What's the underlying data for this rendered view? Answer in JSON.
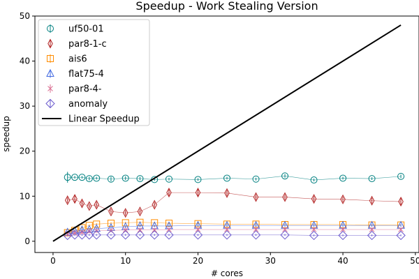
{
  "chart_data": {
    "type": "line",
    "title": "Speedup - Work Stealing Version",
    "xlabel": "# cores",
    "ylabel": "speedup",
    "xlim": [
      -2.5,
      50.5
    ],
    "ylim": [
      -2.5,
      50
    ],
    "xticks": [
      0,
      10,
      20,
      30,
      40,
      50
    ],
    "yticks": [
      0,
      10,
      20,
      30,
      40,
      50
    ],
    "grid": false,
    "legend_position": "top-left",
    "series": [
      {
        "name": "uf50-01",
        "color": "#008080",
        "marker": "circle",
        "x": [
          2,
          3,
          4,
          5,
          6,
          8,
          10,
          12,
          14,
          16,
          20,
          24,
          28,
          32,
          36,
          40,
          44,
          48
        ],
        "y": [
          14.2,
          14.2,
          14.2,
          13.9,
          14.0,
          13.8,
          14.0,
          13.9,
          13.7,
          13.8,
          13.7,
          14.0,
          13.8,
          14.5,
          13.6,
          14.0,
          13.9,
          14.4
        ],
        "err": [
          1.2,
          0.3,
          0.3,
          0.4,
          0.3,
          0.5,
          0.4,
          0.4,
          0.3,
          0.3,
          0.3,
          0.3,
          0.3,
          0.4,
          0.3,
          0.3,
          0.3,
          0.4
        ]
      },
      {
        "name": "par8-1-c",
        "color": "#b22222",
        "marker": "thin_diamond",
        "x": [
          2,
          3,
          4,
          5,
          6,
          8,
          10,
          12,
          14,
          16,
          20,
          24,
          28,
          32,
          36,
          40,
          44,
          48
        ],
        "y": [
          9.1,
          9.4,
          8.4,
          7.8,
          8.1,
          6.6,
          6.3,
          6.6,
          8.1,
          10.8,
          10.8,
          10.7,
          9.8,
          9.8,
          9.4,
          9.3,
          9.0,
          8.8
        ],
        "err": [
          0.6,
          0.8,
          0.6,
          0.5,
          0.6,
          0.5,
          0.6,
          0.5,
          0.6,
          0.7,
          0.7,
          0.6,
          0.6,
          0.6,
          0.6,
          0.6,
          0.6,
          0.7
        ]
      },
      {
        "name": "ais6",
        "color": "#ff8c00",
        "marker": "square",
        "x": [
          2,
          3,
          4,
          5,
          6,
          8,
          10,
          12,
          14,
          16,
          20,
          24,
          28,
          32,
          36,
          40,
          44,
          48
        ],
        "y": [
          1.9,
          2.4,
          3.0,
          3.5,
          3.8,
          4.0,
          4.1,
          4.2,
          4.1,
          4.0,
          3.9,
          3.8,
          3.8,
          3.7,
          3.7,
          3.7,
          3.6,
          3.6
        ],
        "err": [
          0.2,
          0.2,
          0.2,
          0.2,
          0.2,
          0.2,
          0.2,
          0.2,
          0.2,
          0.2,
          0.2,
          0.2,
          0.2,
          0.2,
          0.2,
          0.2,
          0.2,
          0.2
        ]
      },
      {
        "name": "flat75-4",
        "color": "#4169e1",
        "marker": "triangle",
        "x": [
          2,
          3,
          4,
          5,
          6,
          8,
          10,
          12,
          14,
          16,
          20,
          24,
          28,
          32,
          36,
          40,
          44,
          48
        ],
        "y": [
          2.0,
          2.3,
          2.5,
          2.6,
          2.8,
          3.0,
          3.2,
          3.4,
          3.4,
          3.4,
          3.5,
          3.5,
          3.5,
          3.5,
          3.5,
          3.5,
          3.5,
          3.5
        ],
        "err": [
          0.3,
          0.3,
          0.3,
          0.3,
          0.3,
          0.3,
          0.3,
          0.3,
          0.3,
          0.3,
          0.3,
          0.3,
          0.3,
          0.3,
          0.3,
          0.3,
          0.3,
          0.3
        ]
      },
      {
        "name": "par8-4-",
        "color": "#db7093",
        "marker": "x",
        "x": [
          2,
          3,
          4,
          5,
          6,
          8,
          10,
          12,
          14,
          16,
          20,
          24,
          28,
          32,
          36,
          40,
          44,
          48
        ],
        "y": [
          1.6,
          1.8,
          2.0,
          2.2,
          2.3,
          2.4,
          2.5,
          2.5,
          2.5,
          2.6,
          2.6,
          2.6,
          2.6,
          2.6,
          2.6,
          2.6,
          2.6,
          2.6
        ],
        "err": [
          0.4,
          0.4,
          0.4,
          0.4,
          0.4,
          0.4,
          0.4,
          0.4,
          0.4,
          0.4,
          0.4,
          0.4,
          0.4,
          0.4,
          0.4,
          0.4,
          0.4,
          0.4
        ]
      },
      {
        "name": "anomaly",
        "color": "#6a5acd",
        "marker": "diamond",
        "x": [
          2,
          3,
          4,
          5,
          6,
          8,
          10,
          12,
          14,
          16,
          20,
          24,
          28,
          32,
          36,
          40,
          44,
          48
        ],
        "y": [
          1.3,
          1.4,
          1.4,
          1.4,
          1.4,
          1.4,
          1.4,
          1.4,
          1.4,
          1.4,
          1.4,
          1.4,
          1.4,
          1.4,
          1.3,
          1.3,
          1.3,
          1.3
        ],
        "err": [
          0.2,
          0.2,
          0.2,
          0.2,
          0.2,
          0.2,
          0.2,
          0.2,
          0.2,
          0.2,
          0.2,
          0.2,
          0.2,
          0.2,
          0.2,
          0.2,
          0.2,
          0.2
        ]
      },
      {
        "name": "Linear Speedup",
        "color": "#000000",
        "marker": "none",
        "x": [
          0,
          48
        ],
        "y": [
          0,
          48
        ]
      }
    ]
  }
}
